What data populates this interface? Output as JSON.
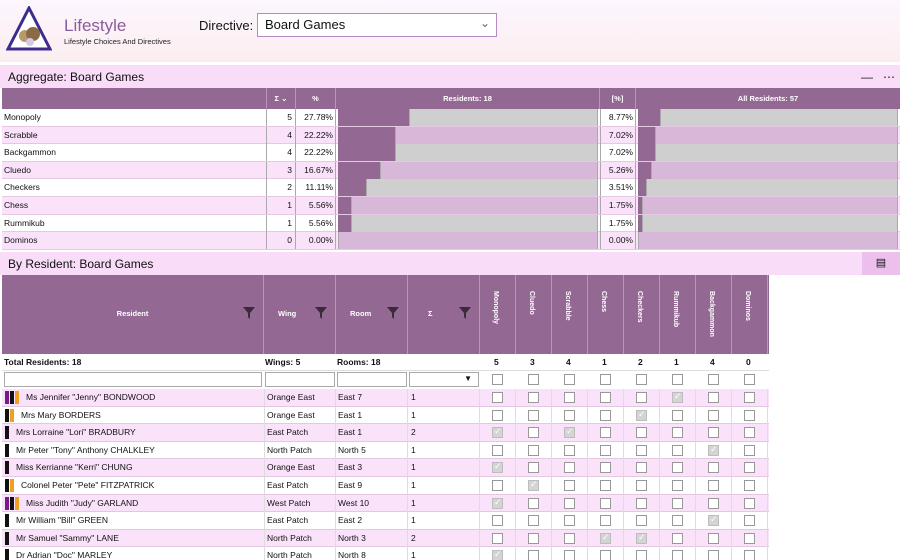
{
  "app": {
    "title": "Lifestyle",
    "subtitle": "Lifestyle Choices And Directives",
    "directive_label": "Directive:",
    "directive_value": "Board Games"
  },
  "aggregate": {
    "section_title": "Aggregate: Board Games",
    "columns": {
      "sigma": "Σ",
      "pct": "%",
      "residents": "Residents: 18",
      "pct_all": "[%]",
      "all_residents": "All Residents: 57"
    },
    "rows": [
      {
        "name": "Monopoly",
        "count": "5",
        "pct": "27.78%",
        "pct_all": "8.77%",
        "frac": 0.2778,
        "frac_all": 0.0877
      },
      {
        "name": "Scrabble",
        "count": "4",
        "pct": "22.22%",
        "pct_all": "7.02%",
        "frac": 0.2222,
        "frac_all": 0.0702
      },
      {
        "name": "Backgammon",
        "count": "4",
        "pct": "22.22%",
        "pct_all": "7.02%",
        "frac": 0.2222,
        "frac_all": 0.0702
      },
      {
        "name": "Cluedo",
        "count": "3",
        "pct": "16.67%",
        "pct_all": "5.26%",
        "frac": 0.1667,
        "frac_all": 0.0526
      },
      {
        "name": "Checkers",
        "count": "2",
        "pct": "11.11%",
        "pct_all": "3.51%",
        "frac": 0.1111,
        "frac_all": 0.0351
      },
      {
        "name": "Chess",
        "count": "1",
        "pct": "5.56%",
        "pct_all": "1.75%",
        "frac": 0.0556,
        "frac_all": 0.0175
      },
      {
        "name": "Rummikub",
        "count": "1",
        "pct": "5.56%",
        "pct_all": "1.75%",
        "frac": 0.0556,
        "frac_all": 0.0175
      },
      {
        "name": "Dominos",
        "count": "0",
        "pct": "0.00%",
        "pct_all": "0.00%",
        "frac": 0,
        "frac_all": 0
      }
    ]
  },
  "by_resident": {
    "section_title": "By Resident: Board Games",
    "headers": {
      "resident": "Resident",
      "wing": "Wing",
      "room": "Room",
      "sigma": "Σ"
    },
    "games": [
      "Monopoly",
      "Cluedo",
      "Scrabble",
      "Chess",
      "Checkers",
      "Rummikub",
      "Backgammon",
      "Dominos"
    ],
    "totals": {
      "residents": "Total Residents: 18",
      "wings": "Wings: 5",
      "rooms": "Rooms: 18",
      "per_game": [
        "5",
        "3",
        "4",
        "1",
        "2",
        "1",
        "4",
        "0"
      ]
    },
    "rows": [
      {
        "name": "Ms Jennifer \"Jenny\" BONDWOOD",
        "wing": "Orange East",
        "room": "East  7",
        "count": "1",
        "chips": [
          "#7a1a8a",
          "#111111",
          "#f0a020"
        ],
        "checks": [
          0,
          0,
          0,
          0,
          0,
          1,
          0,
          0
        ]
      },
      {
        "name": "Mrs Mary BORDERS",
        "wing": "Orange East",
        "room": "East  1",
        "count": "1",
        "chips": [
          "#111111",
          "#f0a020"
        ],
        "checks": [
          0,
          0,
          0,
          0,
          1,
          0,
          0,
          0
        ]
      },
      {
        "name": "Mrs Lorraine \"Lori\" BRADBURY",
        "wing": "East Patch",
        "room": "East  1",
        "count": "2",
        "chips": [
          "#111111"
        ],
        "checks": [
          1,
          0,
          1,
          0,
          0,
          0,
          0,
          0
        ]
      },
      {
        "name": "Mr Peter \"Tony\" Anthony CHALKLEY",
        "wing": "North Patch",
        "room": "North   5",
        "count": "1",
        "chips": [
          "#111111"
        ],
        "checks": [
          0,
          0,
          0,
          0,
          0,
          0,
          1,
          0
        ]
      },
      {
        "name": "Miss Kerrianne \"Kerri\" CHUNG",
        "wing": "Orange East",
        "room": "East  3",
        "count": "1",
        "chips": [
          "#111111"
        ],
        "checks": [
          1,
          0,
          0,
          0,
          0,
          0,
          0,
          0
        ]
      },
      {
        "name": "Colonel Peter \"Pete\" FITZPATRICK",
        "wing": "East Patch",
        "room": "East  9",
        "count": "1",
        "chips": [
          "#111111",
          "#f0a020"
        ],
        "checks": [
          0,
          1,
          0,
          0,
          0,
          0,
          0,
          0
        ]
      },
      {
        "name": "Miss Judith \"Judy\" GARLAND",
        "wing": "West Patch",
        "room": "West 10",
        "count": "1",
        "chips": [
          "#7a1a8a",
          "#111111",
          "#f0a020"
        ],
        "checks": [
          1,
          0,
          0,
          0,
          0,
          0,
          0,
          0
        ]
      },
      {
        "name": "Mr William \"Bill\" GREEN",
        "wing": "East Patch",
        "room": "East  2",
        "count": "1",
        "chips": [
          "#111111"
        ],
        "checks": [
          0,
          0,
          0,
          0,
          0,
          0,
          1,
          0
        ]
      },
      {
        "name": "Mr Samuel \"Sammy\" LANE",
        "wing": "North Patch",
        "room": "North   3",
        "count": "2",
        "chips": [
          "#111111"
        ],
        "checks": [
          0,
          0,
          0,
          1,
          1,
          0,
          0,
          0
        ]
      },
      {
        "name": "Dr Adrian \"Doc\" MARLEY",
        "wing": "North Patch",
        "room": "North   8",
        "count": "1",
        "chips": [
          "#111111"
        ],
        "checks": [
          1,
          0,
          0,
          0,
          0,
          0,
          0,
          0
        ]
      }
    ]
  },
  "colors": {
    "accent": "#936994",
    "row_alt": "#fbe2fb",
    "section": "#f8dcf8"
  }
}
